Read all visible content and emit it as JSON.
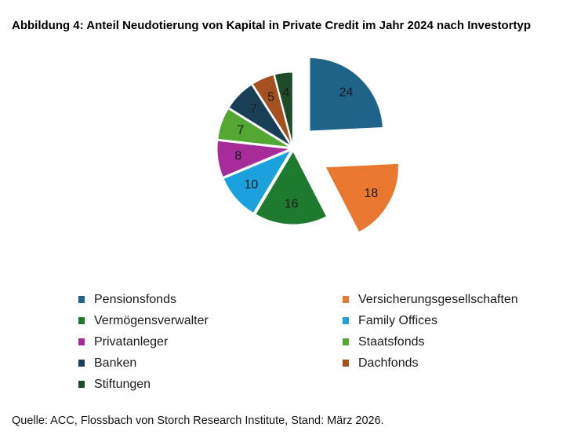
{
  "title": "Abbildung 4: Anteil Neudotierung von Kapital in Private Credit im Jahr 2024 nach Investortyp",
  "source": "Quelle: ACC, Flossbach von Storch Research Institute, Stand: März 2026.",
  "chart_data": {
    "type": "pie",
    "title": "Abbildung 4: Anteil Neudotierung von Kapital in Private Credit im Jahr 2024 nach Investortyp",
    "unit": "share (%)",
    "start_angle": "12 o'clock",
    "direction": "clockwise",
    "legend_position": "bottom, two columns, row-major order",
    "grid": false,
    "slices": [
      {
        "label": "Pensionsfonds",
        "value": 24,
        "color": "#1E6489",
        "explode": 0.32
      },
      {
        "label": "Versicherungsgesellschaften",
        "value": 18,
        "color": "#E8772F",
        "explode": 0.5
      },
      {
        "label": "Vermögensverwalter",
        "value": 16,
        "color": "#1E7A2E",
        "explode": 0.035
      },
      {
        "label": "Family Offices",
        "value": 10,
        "color": "#1BA2DC",
        "explode": 0.035
      },
      {
        "label": "Privatanleger",
        "value": 8,
        "color": "#A62C9A",
        "explode": 0.035
      },
      {
        "label": "Staatsfonds",
        "value": 7,
        "color": "#53A733",
        "explode": 0.035
      },
      {
        "label": "Banken",
        "value": 7,
        "color": "#183F55",
        "explode": 0.035
      },
      {
        "label": "Dachfonds",
        "value": 5,
        "color": "#A5511F",
        "explode": 0.035
      },
      {
        "label": "Stiftungen",
        "value": 4,
        "color": "#1D4C2A",
        "explode": 0.035
      }
    ]
  }
}
